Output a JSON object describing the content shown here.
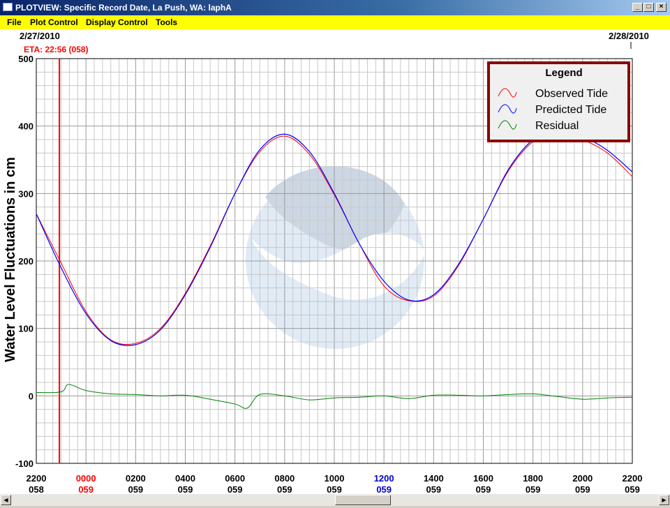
{
  "window": {
    "title": "PLOTVIEW: Specific Record Date, La Push, WA: laphA",
    "minimize_glyph": "_",
    "restore_glyph": "□",
    "close_glyph": "×"
  },
  "menu": {
    "items": [
      "File",
      "Plot Control",
      "Display Control",
      "Tools"
    ]
  },
  "plot": {
    "date_left": "2/27/2010",
    "date_right": "2/28/2010",
    "eta_label": "ETA: 22:56 (058)"
  },
  "chart_data": {
    "type": "line",
    "ylabel": "Water Level Fluctuations in cm",
    "ylim": [
      -100,
      500
    ],
    "yticks": [
      "500",
      "400",
      "300",
      "200",
      "100",
      "0",
      "-100"
    ],
    "xlim_hours": [
      0,
      24
    ],
    "xticks": [
      {
        "time": "2200",
        "day": "058",
        "time_color": "#000000",
        "day_color": "#000000"
      },
      {
        "time": "0000",
        "day": "059",
        "time_color": "#ff0000",
        "day_color": "#ff0000"
      },
      {
        "time": "0200",
        "day": "059",
        "time_color": "#000000",
        "day_color": "#000000"
      },
      {
        "time": "0400",
        "day": "059",
        "time_color": "#000000",
        "day_color": "#000000"
      },
      {
        "time": "0600",
        "day": "059",
        "time_color": "#000000",
        "day_color": "#000000"
      },
      {
        "time": "0800",
        "day": "059",
        "time_color": "#000000",
        "day_color": "#000000"
      },
      {
        "time": "1000",
        "day": "059",
        "time_color": "#000000",
        "day_color": "#000000"
      },
      {
        "time": "1200",
        "day": "059",
        "time_color": "#0000cc",
        "day_color": "#0000cc"
      },
      {
        "time": "1400",
        "day": "059",
        "time_color": "#000000",
        "day_color": "#000000"
      },
      {
        "time": "1600",
        "day": "059",
        "time_color": "#000000",
        "day_color": "#000000"
      },
      {
        "time": "1800",
        "day": "059",
        "time_color": "#000000",
        "day_color": "#000000"
      },
      {
        "time": "2000",
        "day": "059",
        "time_color": "#000000",
        "day_color": "#000000"
      },
      {
        "time": "2200",
        "day": "059",
        "time_color": "#000000",
        "day_color": "#000000"
      }
    ],
    "eta_hours": 0.93,
    "grid": true,
    "legend": {
      "title": "Legend",
      "placement": "top-right",
      "items": [
        {
          "label": "Observed Tide",
          "color": "#ff0000"
        },
        {
          "label": "Predicted Tide",
          "color": "#0000ff"
        },
        {
          "label": "Residual",
          "color": "#008000"
        }
      ]
    },
    "series": [
      {
        "name": "Predicted Tide",
        "color": "#0000ff",
        "x": [
          0,
          1,
          2,
          3,
          4,
          5,
          6,
          7,
          8,
          9,
          10,
          11,
          12,
          13,
          14,
          15,
          16,
          17,
          18,
          19,
          20,
          21,
          22,
          23,
          24
        ],
        "y": [
          270,
          190,
          122,
          82,
          76,
          98,
          150,
          220,
          300,
          365,
          388,
          362,
          300,
          226,
          170,
          142,
          150,
          195,
          262,
          335,
          380,
          398,
          385,
          364,
          332
        ]
      },
      {
        "name": "Observed Tide",
        "color": "#ff0000",
        "x": [
          0,
          1,
          2,
          3,
          4,
          5,
          6,
          7,
          8,
          9,
          10,
          11,
          12,
          13,
          14,
          15,
          16,
          17,
          18,
          19,
          20,
          21,
          22,
          23,
          24
        ],
        "y": [
          270,
          197,
          125,
          83,
          78,
          100,
          152,
          222,
          300,
          362,
          385,
          358,
          298,
          226,
          163,
          141,
          148,
          193,
          262,
          333,
          377,
          392,
          380,
          360,
          325
        ]
      },
      {
        "name": "Residual",
        "color": "#008000",
        "x": [
          0,
          1,
          1.3,
          2,
          3,
          4,
          5,
          6,
          7,
          8,
          8.5,
          9,
          10,
          11,
          12,
          13,
          14,
          15,
          16,
          17,
          18,
          19,
          20,
          21,
          22,
          23,
          24
        ],
        "y": [
          5,
          6,
          17,
          8,
          3,
          2,
          0,
          1,
          -5,
          -12,
          -18,
          2,
          0,
          -6,
          -3,
          -2,
          0,
          -4,
          1,
          1,
          0,
          2,
          3,
          -1,
          -5,
          -3,
          -2
        ]
      }
    ]
  }
}
